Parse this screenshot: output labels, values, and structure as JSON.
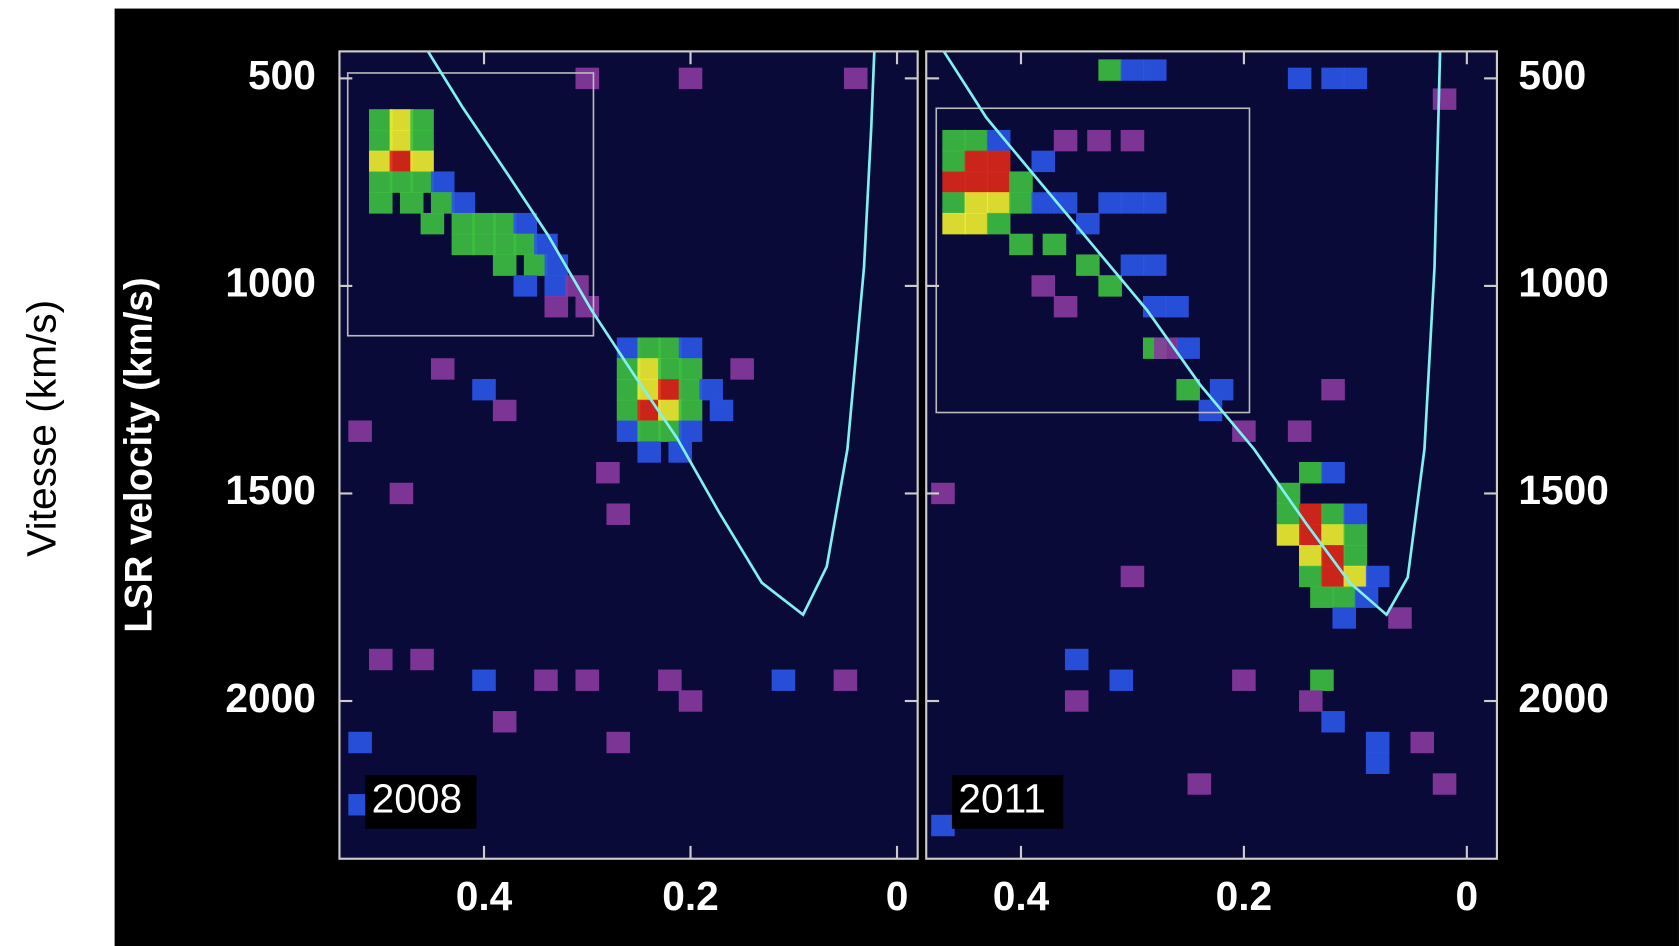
{
  "outer_label": "Vitesse (km/s)",
  "chart_data": [
    {
      "type": "heatmap",
      "label": "2008",
      "ylabel": "LSR velocity (km/s)",
      "y_tick_side": "left",
      "xlim": [
        0.54,
        -0.02
      ],
      "ylim": [
        2380,
        435
      ],
      "xticks": [
        0.4,
        0.2,
        0
      ],
      "yticks": [
        500,
        1000,
        1500,
        2000
      ],
      "colormap": [
        "#8a3aa0",
        "#2a55e8",
        "#3cc040",
        "#f0f030",
        "#e02818"
      ],
      "box": {
        "x": [
          0.532,
          0.294
        ],
        "y": [
          487,
          1120
        ]
      },
      "curve": {
        "color": "#80f0f0",
        "x": [
          0.454,
          0.421,
          0.379,
          0.338,
          0.296,
          0.255,
          0.213,
          0.172,
          0.131,
          0.091,
          0.068,
          0.048,
          0.032,
          0.025,
          0.022
        ],
        "y": [
          436,
          569,
          724,
          878,
          1058,
          1213,
          1367,
          1547,
          1715,
          1792,
          1676,
          1393,
          955,
          621,
          436
        ]
      },
      "cells": [
        [
          0.5,
          600,
          3
        ],
        [
          0.48,
          600,
          4
        ],
        [
          0.46,
          600,
          3
        ],
        [
          0.5,
          650,
          3
        ],
        [
          0.48,
          650,
          4
        ],
        [
          0.46,
          650,
          3
        ],
        [
          0.5,
          700,
          4
        ],
        [
          0.48,
          700,
          5
        ],
        [
          0.46,
          700,
          4
        ],
        [
          0.5,
          750,
          3
        ],
        [
          0.48,
          750,
          3
        ],
        [
          0.46,
          750,
          3
        ],
        [
          0.44,
          750,
          2
        ],
        [
          0.5,
          800,
          3
        ],
        [
          0.47,
          800,
          3
        ],
        [
          0.44,
          800,
          3
        ],
        [
          0.42,
          800,
          2
        ],
        [
          0.45,
          850,
          3
        ],
        [
          0.42,
          850,
          3
        ],
        [
          0.4,
          850,
          3
        ],
        [
          0.38,
          850,
          3
        ],
        [
          0.36,
          850,
          2
        ],
        [
          0.42,
          900,
          3
        ],
        [
          0.4,
          900,
          3
        ],
        [
          0.38,
          900,
          3
        ],
        [
          0.36,
          900,
          3
        ],
        [
          0.34,
          900,
          2
        ],
        [
          0.38,
          950,
          3
        ],
        [
          0.35,
          950,
          3
        ],
        [
          0.33,
          950,
          2
        ],
        [
          0.36,
          1000,
          2
        ],
        [
          0.33,
          1000,
          2
        ],
        [
          0.31,
          1000,
          1
        ],
        [
          0.33,
          1050,
          1
        ],
        [
          0.3,
          1050,
          1
        ],
        [
          0.26,
          1150,
          2
        ],
        [
          0.24,
          1150,
          3
        ],
        [
          0.22,
          1150,
          3
        ],
        [
          0.2,
          1150,
          2
        ],
        [
          0.26,
          1200,
          3
        ],
        [
          0.24,
          1200,
          4
        ],
        [
          0.22,
          1200,
          3
        ],
        [
          0.2,
          1200,
          3
        ],
        [
          0.26,
          1250,
          3
        ],
        [
          0.24,
          1250,
          4
        ],
        [
          0.22,
          1250,
          5
        ],
        [
          0.2,
          1250,
          3
        ],
        [
          0.18,
          1250,
          2
        ],
        [
          0.26,
          1300,
          3
        ],
        [
          0.24,
          1300,
          5
        ],
        [
          0.22,
          1300,
          4
        ],
        [
          0.2,
          1300,
          3
        ],
        [
          0.26,
          1350,
          2
        ],
        [
          0.24,
          1350,
          3
        ],
        [
          0.22,
          1350,
          3
        ],
        [
          0.2,
          1350,
          2
        ],
        [
          0.24,
          1400,
          2
        ],
        [
          0.21,
          1400,
          2
        ],
        [
          0.44,
          1200,
          1
        ],
        [
          0.4,
          1250,
          2
        ],
        [
          0.38,
          1300,
          1
        ],
        [
          0.52,
          1350,
          1
        ],
        [
          0.48,
          1500,
          1
        ],
        [
          0.28,
          1450,
          1
        ],
        [
          0.27,
          1550,
          1
        ],
        [
          0.17,
          1300,
          2
        ],
        [
          0.15,
          1200,
          1
        ],
        [
          0.46,
          1900,
          1
        ],
        [
          0.4,
          1950,
          2
        ],
        [
          0.5,
          1900,
          1
        ],
        [
          0.52,
          2100,
          2
        ],
        [
          0.34,
          1950,
          1
        ],
        [
          0.3,
          1950,
          1
        ],
        [
          0.22,
          1950,
          1
        ],
        [
          0.11,
          1950,
          2
        ],
        [
          0.05,
          1950,
          1
        ],
        [
          0.52,
          2250,
          2
        ],
        [
          0.27,
          2100,
          1
        ],
        [
          0.38,
          2050,
          1
        ],
        [
          0.2,
          2000,
          1
        ],
        [
          0.3,
          500,
          1
        ],
        [
          0.2,
          500,
          1
        ],
        [
          0.04,
          500,
          1
        ]
      ]
    },
    {
      "type": "heatmap",
      "label": "2011",
      "y_tick_side": "right",
      "xlim": [
        0.485,
        -0.027
      ],
      "ylim": [
        2380,
        435
      ],
      "xticks": [
        0.4,
        0.2,
        0
      ],
      "yticks": [
        500,
        1000,
        1500,
        2000
      ],
      "colormap": [
        "#8a3aa0",
        "#2a55e8",
        "#3cc040",
        "#f0f030",
        "#e02818"
      ],
      "box": {
        "x": [
          0.476,
          0.195
        ],
        "y": [
          572,
          1305
        ]
      },
      "curve": {
        "color": "#80f0f0",
        "x": [
          0.469,
          0.431,
          0.383,
          0.335,
          0.287,
          0.239,
          0.191,
          0.144,
          0.105,
          0.072,
          0.053,
          0.038,
          0.029,
          0.024
        ],
        "y": [
          436,
          595,
          750,
          904,
          1058,
          1239,
          1393,
          1573,
          1715,
          1792,
          1702,
          1393,
          955,
          436
        ]
      },
      "cells": [
        [
          0.46,
          650,
          3
        ],
        [
          0.44,
          650,
          3
        ],
        [
          0.42,
          650,
          2
        ],
        [
          0.46,
          700,
          3
        ],
        [
          0.44,
          700,
          5
        ],
        [
          0.42,
          700,
          5
        ],
        [
          0.46,
          750,
          5
        ],
        [
          0.44,
          750,
          5
        ],
        [
          0.42,
          750,
          5
        ],
        [
          0.46,
          800,
          3
        ],
        [
          0.44,
          800,
          4
        ],
        [
          0.42,
          800,
          4
        ],
        [
          0.46,
          850,
          4
        ],
        [
          0.44,
          850,
          4
        ],
        [
          0.42,
          850,
          3
        ],
        [
          0.4,
          800,
          3
        ],
        [
          0.4,
          750,
          3
        ],
        [
          0.38,
          700,
          2
        ],
        [
          0.36,
          650,
          1
        ],
        [
          0.33,
          650,
          1
        ],
        [
          0.3,
          650,
          1
        ],
        [
          0.4,
          900,
          3
        ],
        [
          0.37,
          900,
          3
        ],
        [
          0.38,
          800,
          2
        ],
        [
          0.36,
          800,
          2
        ],
        [
          0.34,
          850,
          2
        ],
        [
          0.32,
          800,
          2
        ],
        [
          0.3,
          800,
          2
        ],
        [
          0.28,
          800,
          2
        ],
        [
          0.34,
          950,
          3
        ],
        [
          0.3,
          950,
          2
        ],
        [
          0.28,
          950,
          2
        ],
        [
          0.32,
          1000,
          3
        ],
        [
          0.28,
          1050,
          2
        ],
        [
          0.26,
          1050,
          2
        ],
        [
          0.28,
          1150,
          3
        ],
        [
          0.25,
          1150,
          2
        ],
        [
          0.25,
          1250,
          3
        ],
        [
          0.22,
          1250,
          2
        ],
        [
          0.23,
          1300,
          2
        ],
        [
          0.2,
          1350,
          1
        ],
        [
          0.38,
          1000,
          1
        ],
        [
          0.36,
          1050,
          1
        ],
        [
          0.16,
          1500,
          3
        ],
        [
          0.14,
          1450,
          3
        ],
        [
          0.12,
          1450,
          2
        ],
        [
          0.16,
          1550,
          3
        ],
        [
          0.14,
          1550,
          5
        ],
        [
          0.12,
          1550,
          3
        ],
        [
          0.1,
          1550,
          2
        ],
        [
          0.16,
          1600,
          4
        ],
        [
          0.14,
          1600,
          5
        ],
        [
          0.12,
          1600,
          4
        ],
        [
          0.1,
          1600,
          3
        ],
        [
          0.14,
          1650,
          4
        ],
        [
          0.12,
          1650,
          5
        ],
        [
          0.1,
          1650,
          3
        ],
        [
          0.14,
          1700,
          3
        ],
        [
          0.12,
          1700,
          5
        ],
        [
          0.1,
          1700,
          4
        ],
        [
          0.08,
          1700,
          2
        ],
        [
          0.13,
          1750,
          3
        ],
        [
          0.11,
          1750,
          3
        ],
        [
          0.09,
          1750,
          2
        ],
        [
          0.11,
          1800,
          2
        ],
        [
          0.13,
          1950,
          3
        ],
        [
          0.12,
          2050,
          2
        ],
        [
          0.08,
          2100,
          2
        ],
        [
          0.04,
          2100,
          1
        ],
        [
          0.31,
          1950,
          2
        ],
        [
          0.35,
          1900,
          2
        ],
        [
          0.2,
          1950,
          1
        ],
        [
          0.47,
          2300,
          2
        ],
        [
          0.27,
          1150,
          1
        ],
        [
          0.12,
          1250,
          1
        ],
        [
          0.15,
          1350,
          1
        ],
        [
          0.06,
          1800,
          1
        ],
        [
          0.02,
          2200,
          1
        ],
        [
          0.08,
          2150,
          2
        ],
        [
          0.14,
          2000,
          1
        ],
        [
          0.24,
          2200,
          1
        ],
        [
          0.35,
          2000,
          1
        ],
        [
          0.3,
          1700,
          1
        ],
        [
          0.47,
          1500,
          1
        ],
        [
          0.32,
          480,
          3
        ],
        [
          0.28,
          480,
          2
        ],
        [
          0.3,
          480,
          2
        ],
        [
          0.15,
          500,
          2
        ],
        [
          0.12,
          500,
          2
        ],
        [
          0.1,
          500,
          2
        ],
        [
          0.02,
          550,
          1
        ]
      ]
    }
  ]
}
